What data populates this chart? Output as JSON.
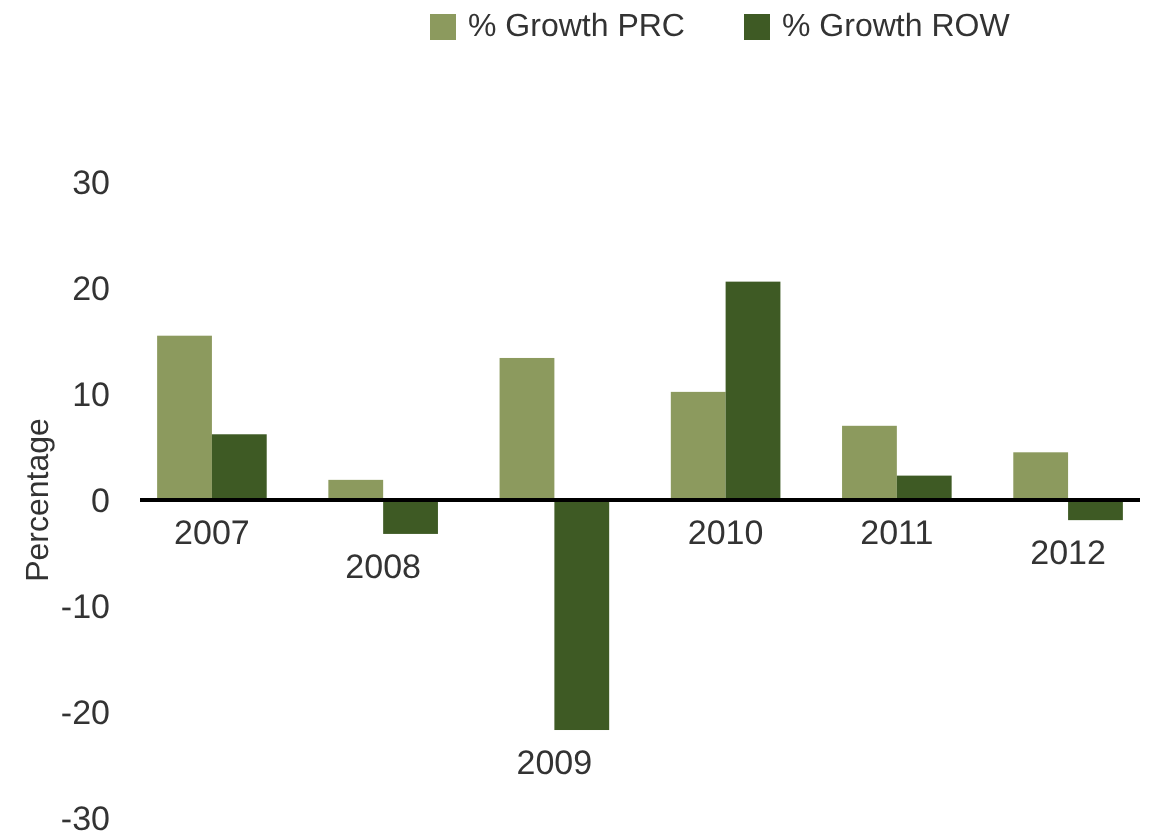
{
  "chart_data": {
    "type": "bar",
    "ylabel": "Percentage",
    "categories": [
      "2007",
      "2008",
      "2009",
      "2010",
      "2011",
      "2012"
    ],
    "series": [
      {
        "name": "% Growth PRC",
        "color": "#8c9a5e",
        "values": [
          15.5,
          1.9,
          13.4,
          10.2,
          7.0,
          4.5
        ]
      },
      {
        "name": "% Growth ROW",
        "color": "#3e5a24",
        "values": [
          6.2,
          -3.2,
          -21.7,
          20.6,
          2.3,
          -1.9
        ]
      }
    ],
    "ylim": [
      -30,
      30
    ],
    "yticks": [
      -30,
      -20,
      -10,
      0,
      10,
      20,
      30
    ],
    "grid": false,
    "legend": "top"
  }
}
